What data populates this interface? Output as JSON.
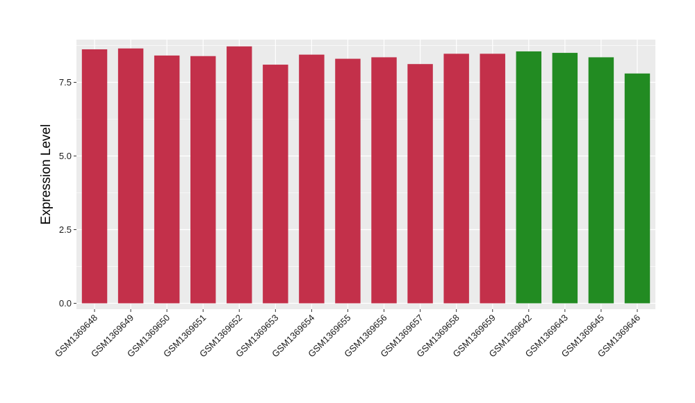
{
  "chart_data": {
    "type": "bar",
    "xlabel": "",
    "ylabel": "Expression Level",
    "ylim": [
      -0.2,
      8.95
    ],
    "yticks": [
      0.0,
      2.5,
      5.0,
      7.5
    ],
    "ytick_labels": [
      "0.0",
      "2.5",
      "5.0",
      "7.5"
    ],
    "grid": true,
    "categories": [
      "GSM1369648",
      "GSM1369649",
      "GSM1369650",
      "GSM1369651",
      "GSM1369652",
      "GSM1369653",
      "GSM1369654",
      "GSM1369655",
      "GSM1369656",
      "GSM1369657",
      "GSM1369658",
      "GSM1369659",
      "GSM1369642",
      "GSM1369643",
      "GSM1369645",
      "GSM1369646"
    ],
    "values": [
      8.62,
      8.65,
      8.41,
      8.39,
      8.72,
      8.1,
      8.44,
      8.3,
      8.35,
      8.12,
      8.47,
      8.47,
      8.55,
      8.5,
      8.35,
      7.8
    ],
    "bar_colors": [
      "#c3304a",
      "#c3304a",
      "#c3304a",
      "#c3304a",
      "#c3304a",
      "#c3304a",
      "#c3304a",
      "#c3304a",
      "#c3304a",
      "#c3304a",
      "#c3304a",
      "#c3304a",
      "#228b22",
      "#228b22",
      "#228b22",
      "#228b22"
    ],
    "panel_background": "#ebebeb",
    "gridline_color": "#ffffff"
  }
}
